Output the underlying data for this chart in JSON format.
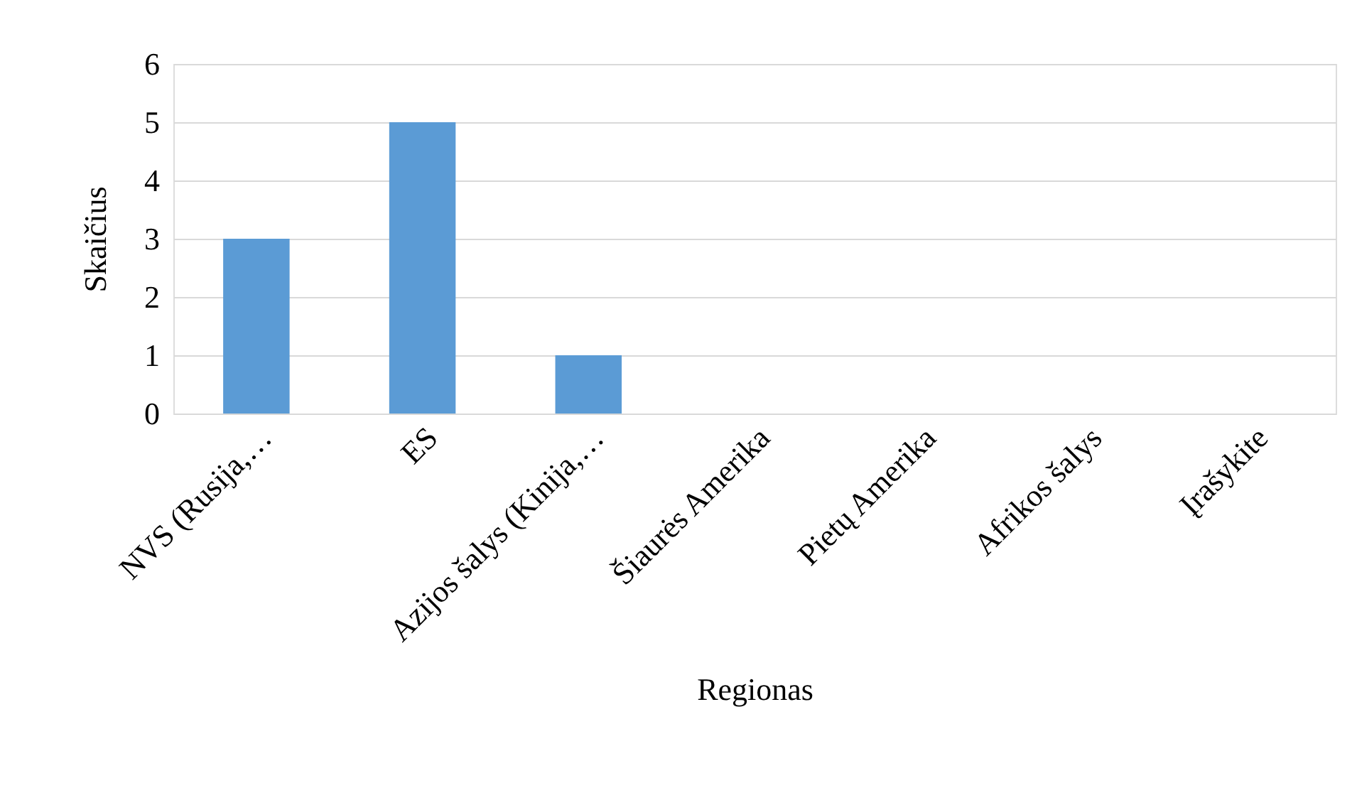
{
  "chart_data": {
    "type": "bar",
    "xlabel": "Regionas",
    "ylabel": "Skaičius",
    "categories": [
      "NVS (Rusija,…",
      "ES",
      "Azijos šalys (Kinija,…",
      "Šiaurės Amerika",
      "Pietų Amerika",
      "Afrikos šalys",
      "Įrašykite"
    ],
    "values": [
      3,
      5,
      1,
      0,
      0,
      0,
      0
    ],
    "color": "#5b9bd5",
    "ylim": [
      0,
      6
    ],
    "yticks": [
      0,
      1,
      2,
      3,
      4,
      5,
      6
    ],
    "grid": "y"
  }
}
